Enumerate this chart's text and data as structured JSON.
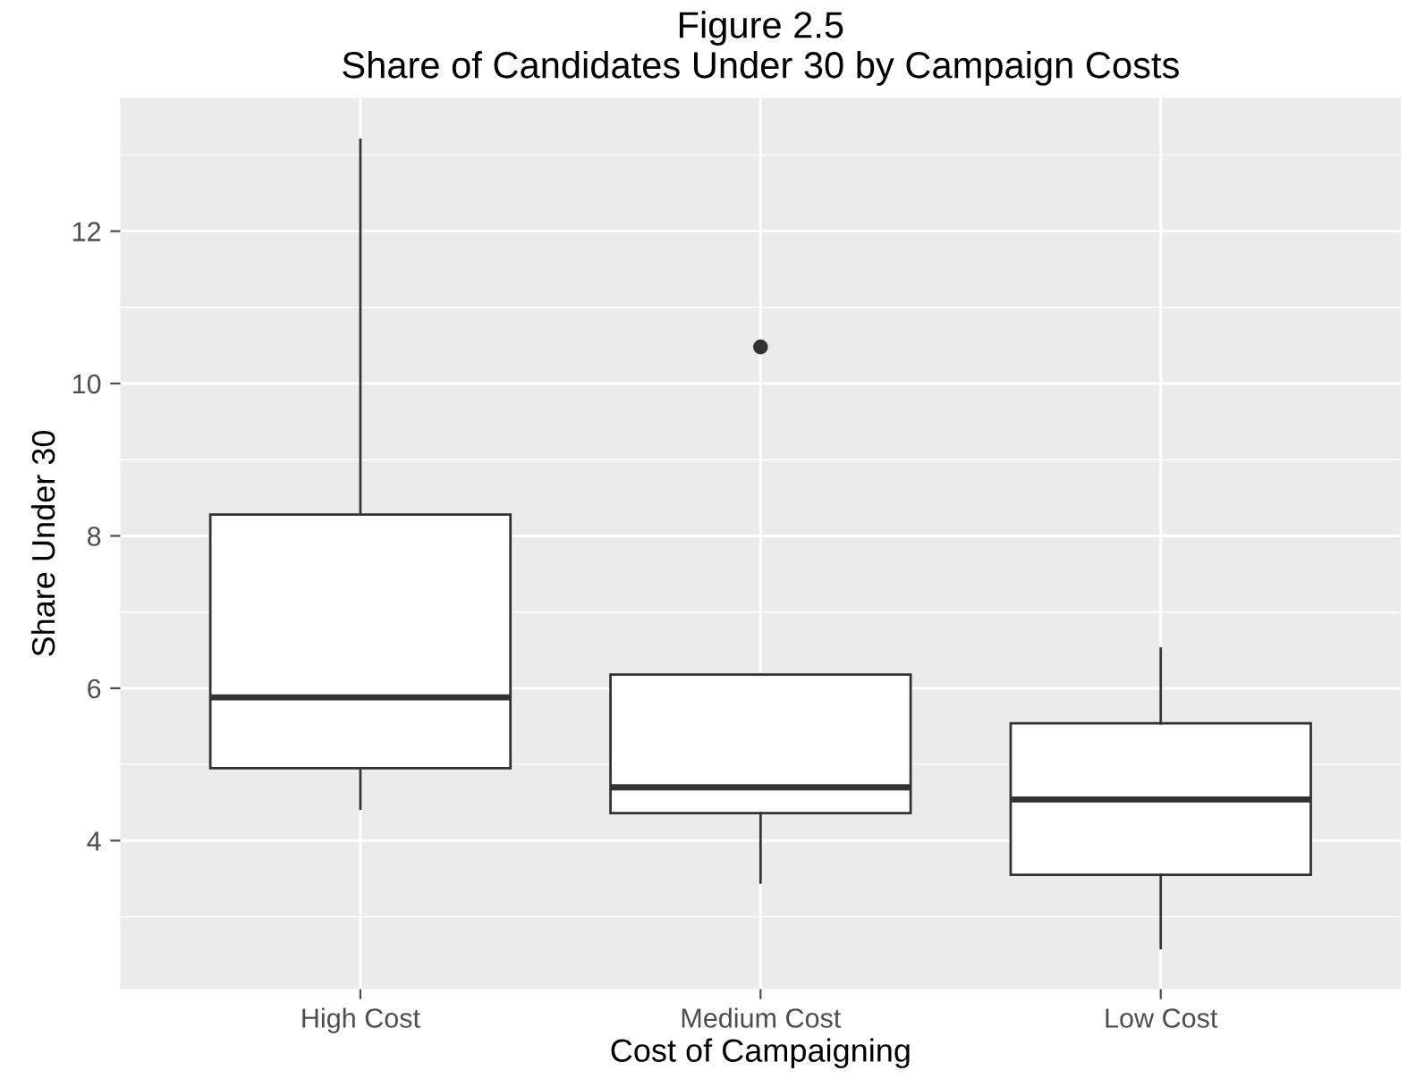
{
  "chart_data": {
    "type": "box",
    "title": "Figure 2.5\nShare of Candidates Under 30 by Campaign Costs",
    "xlabel": "Cost of Campaigning",
    "ylabel": "Share Under 30",
    "categories": [
      "High Cost",
      "Medium Cost",
      "Low Cost"
    ],
    "boxes": [
      {
        "low": 4.42,
        "q1": 4.95,
        "median": 5.88,
        "q3": 8.28,
        "high": 13.2
      },
      {
        "low": 3.45,
        "q1": 4.36,
        "median": 4.7,
        "q3": 6.18,
        "high": 6.18,
        "outliers": [
          10.48
        ]
      },
      {
        "low": 2.59,
        "q1": 3.55,
        "median": 4.54,
        "q3": 5.54,
        "high": 6.52
      }
    ],
    "ylim": [
      2.05,
      13.75
    ],
    "yticks": [
      4,
      6,
      8,
      10,
      12
    ],
    "grid": true,
    "legend": false
  }
}
